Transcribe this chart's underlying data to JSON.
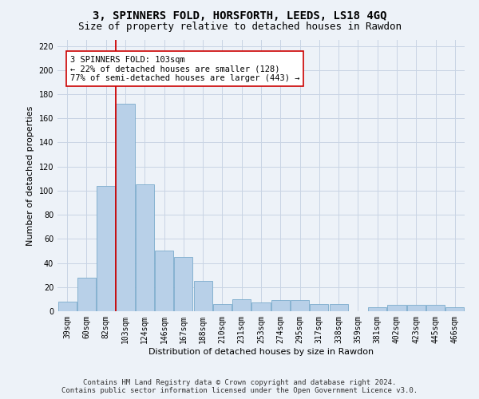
{
  "title": "3, SPINNERS FOLD, HORSFORTH, LEEDS, LS18 4GQ",
  "subtitle": "Size of property relative to detached houses in Rawdon",
  "xlabel": "Distribution of detached houses by size in Rawdon",
  "ylabel": "Number of detached properties",
  "categories": [
    "39sqm",
    "60sqm",
    "82sqm",
    "103sqm",
    "124sqm",
    "146sqm",
    "167sqm",
    "188sqm",
    "210sqm",
    "231sqm",
    "253sqm",
    "274sqm",
    "295sqm",
    "317sqm",
    "338sqm",
    "359sqm",
    "381sqm",
    "402sqm",
    "423sqm",
    "445sqm",
    "466sqm"
  ],
  "values": [
    8,
    28,
    104,
    172,
    105,
    50,
    45,
    25,
    6,
    10,
    7,
    9,
    9,
    6,
    6,
    0,
    3,
    5,
    5,
    5,
    3
  ],
  "bar_color": "#b8d0e8",
  "bar_edge_color": "#7aabcc",
  "grid_color": "#c8d4e4",
  "background_color": "#edf2f8",
  "vline_index": 3,
  "vline_color": "#cc0000",
  "annotation_text": "3 SPINNERS FOLD: 103sqm\n← 22% of detached houses are smaller (128)\n77% of semi-detached houses are larger (443) →",
  "annotation_box_facecolor": "#ffffff",
  "annotation_box_edgecolor": "#cc0000",
  "ylim": [
    0,
    225
  ],
  "yticks": [
    0,
    20,
    40,
    60,
    80,
    100,
    120,
    140,
    160,
    180,
    200,
    220
  ],
  "footer_line1": "Contains HM Land Registry data © Crown copyright and database right 2024.",
  "footer_line2": "Contains public sector information licensed under the Open Government Licence v3.0.",
  "title_fontsize": 10,
  "subtitle_fontsize": 9,
  "axis_label_fontsize": 8,
  "tick_fontsize": 7,
  "annotation_fontsize": 7.5,
  "footer_fontsize": 6.5
}
